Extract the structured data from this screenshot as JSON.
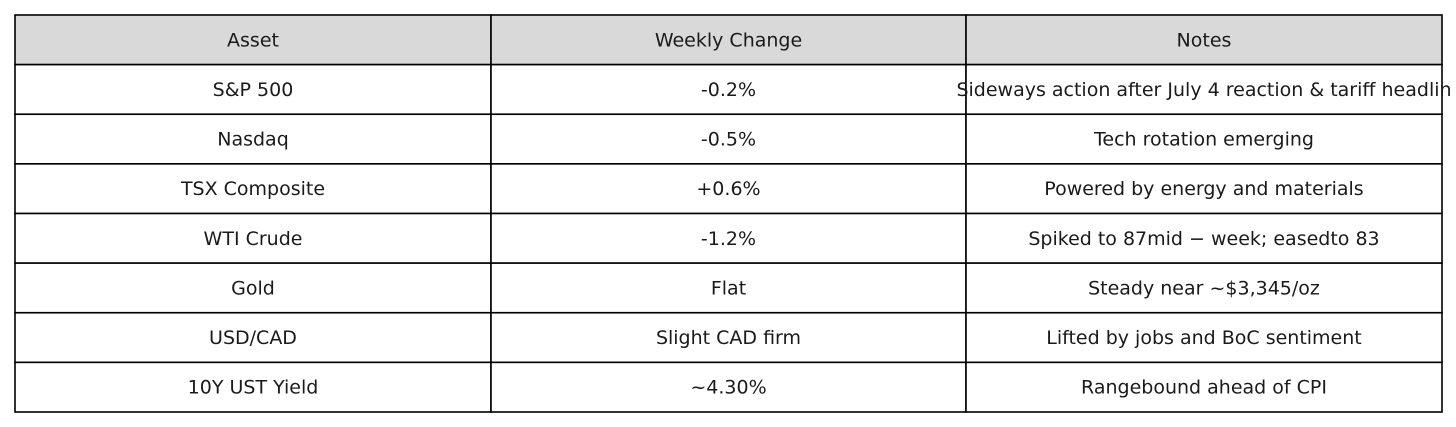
{
  "table": {
    "header": [
      "Asset",
      "Weekly Change",
      "Notes"
    ],
    "rows": [
      [
        "S&P 500",
        "-0.2%",
        "Sideways action after July 4 reaction & tariff headlin"
      ],
      [
        "Nasdaq",
        "-0.5%",
        "Tech rotation emerging"
      ],
      [
        "TSX Composite",
        "+0.6%",
        "Powered by energy and materials"
      ],
      [
        "WTI Crude",
        "-1.2%",
        "Spiked to 87mid − week; easedto 83"
      ],
      [
        "Gold",
        "Flat",
        "Steady near ~$3,345/oz"
      ],
      [
        "USD/CAD",
        "Slight CAD firm",
        "Lifted by jobs and BoC sentiment"
      ],
      [
        "10Y UST Yield",
        "~4.30%",
        "Rangebound ahead of CPI"
      ]
    ]
  }
}
